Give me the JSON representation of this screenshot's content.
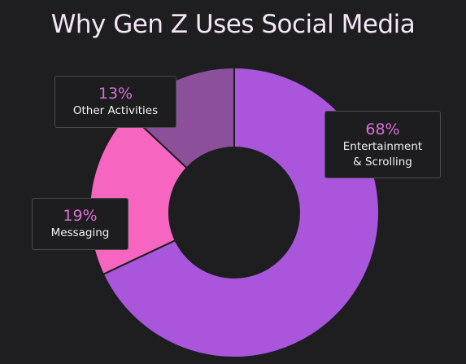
{
  "header": {
    "title": "Why Gen Z Uses Social Media"
  },
  "colors": {
    "background": "#1e1e21",
    "percent_text": "#d970d2"
  },
  "chart_data": {
    "type": "pie",
    "title": "Why Gen Z Uses Social Media",
    "donut": true,
    "unit": "%",
    "slices": [
      {
        "label_lines": [
          "Entertainment",
          "& Scrolling"
        ],
        "value": 68,
        "value_label": "68%",
        "color": "#a955dc"
      },
      {
        "label_lines": [
          "Messaging"
        ],
        "value": 19,
        "value_label": "19%",
        "color": "#f666c0"
      },
      {
        "label_lines": [
          "Other Activities"
        ],
        "value": 13,
        "value_label": "13%",
        "color": "#8c509a"
      }
    ]
  }
}
